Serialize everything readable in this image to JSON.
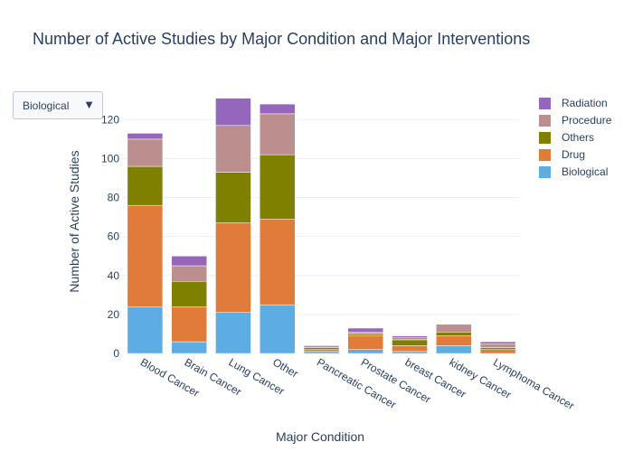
{
  "dropdown": {
    "selected": "Biological",
    "arrow_icon": "triangle-down-icon"
  },
  "chart_data": {
    "type": "bar",
    "stacked": true,
    "title": "Number of Active Studies by Major Condition and Major Interventions",
    "xlabel": "Major Condition",
    "ylabel": "Number of Active Studies",
    "ylim": [
      0,
      135
    ],
    "yticks": [
      0,
      20,
      40,
      60,
      80,
      100,
      120
    ],
    "grid": true,
    "legend_position": "top-right",
    "categories": [
      "Blood Cancer",
      "Brain Cancer",
      "Lung Cancer",
      "Other",
      "Pancreatic Cancer",
      "Prostate Cancer",
      "breast Cancer",
      "kidney Cancer",
      "Lymphoma Cancer"
    ],
    "series": [
      {
        "name": "Biological",
        "color": "#5dade2",
        "values": [
          24,
          6,
          21,
          25,
          1,
          2,
          1,
          4,
          0
        ]
      },
      {
        "name": "Drug",
        "color": "#e07b39",
        "values": [
          52,
          18,
          46,
          44,
          1,
          7,
          3,
          5,
          2
        ]
      },
      {
        "name": "Others",
        "color": "#808000",
        "values": [
          20,
          13,
          26,
          33,
          1,
          1,
          3,
          2,
          1
        ]
      },
      {
        "name": "Procedure",
        "color": "#bc8f8f",
        "values": [
          14,
          8,
          24,
          21,
          1,
          1,
          1,
          4,
          2
        ]
      },
      {
        "name": "Radiation",
        "color": "#9467bd",
        "values": [
          3,
          5,
          14,
          5,
          0,
          2,
          1,
          0,
          1
        ]
      }
    ]
  }
}
